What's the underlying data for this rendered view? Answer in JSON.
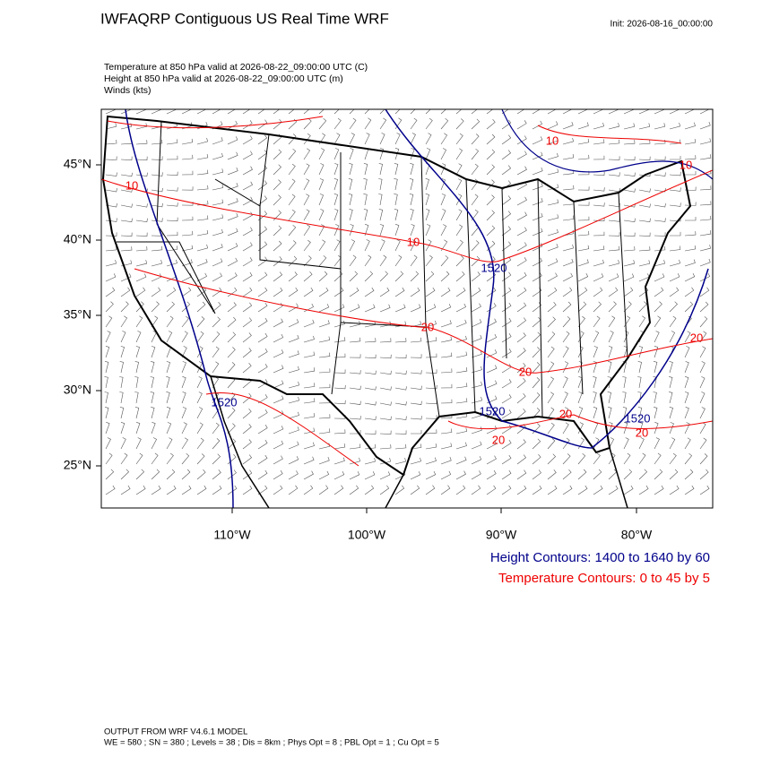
{
  "header": {
    "title": "IWFAQRP Contiguous US Real Time WRF",
    "init": "Init: 2026-08-16_00:00:00"
  },
  "fields": [
    "Temperature at 850 hPa valid at 2026-08-22_09:00:00 UTC   (C)",
    "Height at 850 hPa valid at 2026-08-22_09:00:00 UTC   (m)",
    "Winds   (kts)"
  ],
  "lat_labels": [
    "45°N",
    "40°N",
    "35°N",
    "30°N",
    "25°N"
  ],
  "lon_labels": [
    "110°W",
    "100°W",
    "90°W",
    "80°W"
  ],
  "contour_labels": [
    "10",
    "10",
    "10",
    "10",
    "1520",
    "20",
    "20",
    "20",
    "1520",
    "1520",
    "1520",
    "20",
    "20",
    "20"
  ],
  "legend": {
    "height": "Height Contours: 1400 to 1640 by 60",
    "temperature": "Temperature Contours: 0 to 45 by 5"
  },
  "footer": [
    "OUTPUT FROM WRF V4.6.1 MODEL",
    "WE = 580 ; SN = 380 ; Levels = 38 ; Dis = 8km ; Phys Opt = 8 ; PBL Opt = 1 ; Cu Opt = 5"
  ]
}
